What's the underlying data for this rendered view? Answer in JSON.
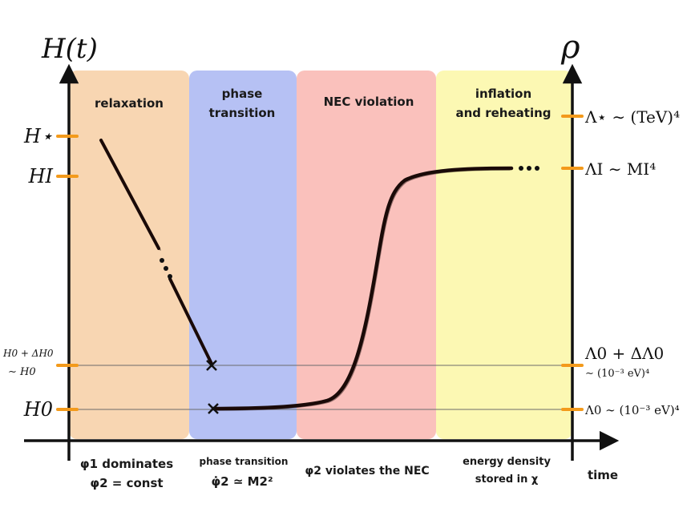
{
  "axes": {
    "left_label": "H(t)",
    "right_label": "ρ",
    "time_label": "time"
  },
  "colors": {
    "relaxation": "#f7cfa4",
    "phase_transition": "#a9b6f2",
    "nec_violation": "#f9b6b0",
    "inflation": "#fbf7a6",
    "tick": "#f39a1b",
    "curve": "#1a0a08"
  },
  "eras": [
    {
      "title_line1": "relaxation",
      "title_line2": "",
      "caption_line1": "φ1 dominates",
      "caption_line2": "φ2 = const"
    },
    {
      "title_line1": "phase",
      "title_line2": "transition",
      "caption_line1": "phase transition",
      "caption_line2": "φ̇2 ≃ M2²"
    },
    {
      "title_line1": "NEC violation",
      "title_line2": "",
      "caption_line1": "φ2 violates the NEC",
      "caption_line2": ""
    },
    {
      "title_line1": "inflation",
      "title_line2": "and reheating",
      "caption_line1": "energy density",
      "caption_line2": "stored in χ"
    }
  ],
  "left_ticks": {
    "h_star": "H⋆",
    "h_i": "HI",
    "h0_delta_line1": "H0 + ΔH0",
    "h0_delta_line2": "∼ H0",
    "h0": "H0"
  },
  "right_ticks": {
    "lambda_star": "Λ⋆ ∼ (TeV)⁴",
    "lambda_i": "ΛI ∼ MI⁴",
    "lambda0_delta_line1": "Λ0 + ΔΛ0",
    "lambda0_delta_line2": "∼ (10⁻³ eV)⁴",
    "lambda0": "Λ0 ∼ (10⁻³ eV)⁴"
  }
}
